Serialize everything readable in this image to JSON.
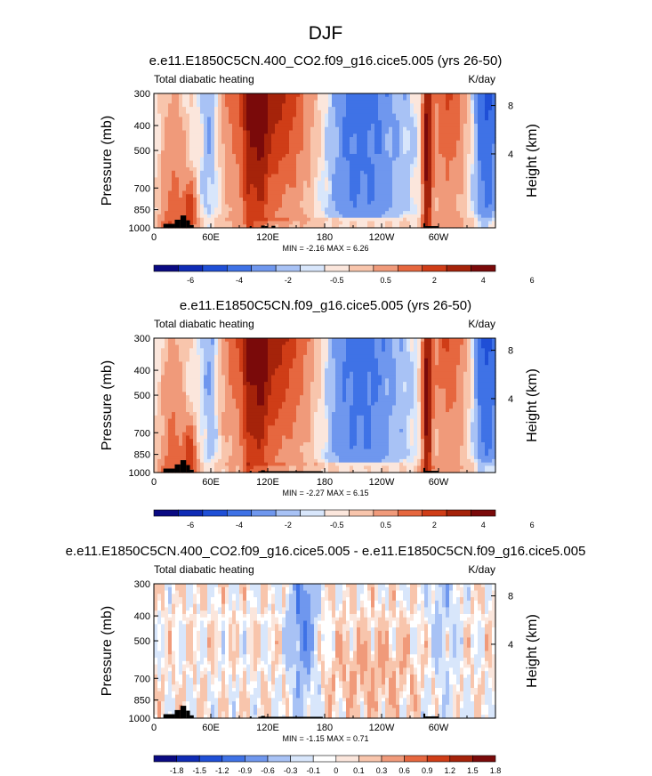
{
  "figure": {
    "suptitle": "DJF",
    "colors": {
      "full_palette": [
        "#0a0a82",
        "#0f2bb5",
        "#1f4fd6",
        "#3f72e6",
        "#6f97ee",
        "#a8c2f5",
        "#d8e6fb",
        "#fbe6dc",
        "#f8c5ac",
        "#f09a7a",
        "#e6673f",
        "#cf3d17",
        "#a5230a",
        "#7a0a0a"
      ],
      "diff_palette": [
        "#0a0a82",
        "#0f2bb5",
        "#1f4fd6",
        "#3f72e6",
        "#6f97ee",
        "#a8c2f5",
        "#d8e6fb",
        "#ffffff",
        "#fbe6dc",
        "#f8c5ac",
        "#f09a7a",
        "#e6673f",
        "#cf3d17",
        "#a5230a",
        "#7a0a0a"
      ],
      "terrain": "#000000"
    }
  },
  "chart_data": [
    {
      "type": "heatmap",
      "title": "e.e11.E1850C5CN.400_CO2.f09_g16.cice5.005 (yrs 26-50)",
      "left_label": "Total diabatic heating",
      "units_label": "K/day",
      "ylabel": "Pressure (mb)",
      "ylabel_right": "Height (km)",
      "x_ticks": [
        "0",
        "60E",
        "120E",
        "180",
        "120W",
        "60W"
      ],
      "x_range": [
        0,
        360
      ],
      "y_ticks": [
        "300",
        "400",
        "500",
        "700",
        "850",
        "1000"
      ],
      "y_range": [
        300,
        1000
      ],
      "y_right_ticks": [
        "8",
        "4"
      ],
      "stats": "MIN =  -2.16  MAX =   6.26",
      "colorbar_labels": [
        "-6",
        "-4",
        "-2",
        "-0.5",
        "0.5",
        "2",
        "4",
        "6"
      ],
      "palette": "full"
    },
    {
      "type": "heatmap",
      "title": "e.e11.E1850C5CN.f09_g16.cice5.005 (yrs 26-50)",
      "left_label": "Total diabatic heating",
      "units_label": "K/day",
      "ylabel": "Pressure (mb)",
      "ylabel_right": "Height (km)",
      "x_ticks": [
        "0",
        "60E",
        "120E",
        "180",
        "120W",
        "60W"
      ],
      "x_range": [
        0,
        360
      ],
      "y_ticks": [
        "300",
        "400",
        "500",
        "700",
        "850",
        "1000"
      ],
      "y_range": [
        300,
        1000
      ],
      "y_right_ticks": [
        "8",
        "4"
      ],
      "stats": "MIN =  -2.27  MAX =   6.15",
      "colorbar_labels": [
        "-6",
        "-4",
        "-2",
        "-0.5",
        "0.5",
        "2",
        "4",
        "6"
      ],
      "palette": "full"
    },
    {
      "type": "heatmap",
      "title": "e.e11.E1850C5CN.400_CO2.f09_g16.cice5.005 - e.e11.E1850C5CN.f09_g16.cice5.005",
      "left_label": "Total diabatic heating",
      "units_label": "K/day",
      "ylabel": "Pressure (mb)",
      "ylabel_right": "Height (km)",
      "x_ticks": [
        "0",
        "60E",
        "120E",
        "180",
        "120W",
        "60W"
      ],
      "x_range": [
        0,
        360
      ],
      "y_ticks": [
        "300",
        "400",
        "500",
        "700",
        "850",
        "1000"
      ],
      "y_range": [
        300,
        1000
      ],
      "y_right_ticks": [
        "8",
        "4"
      ],
      "stats": "MIN =  -1.15  MAX =   0.71",
      "colorbar_labels": [
        "-1.8",
        "-1.5",
        "-1.2",
        "-0.9",
        "-0.6",
        "-0.3",
        "-0.1",
        "0",
        "0.1",
        "0.3",
        "0.6",
        "0.9",
        "1.2",
        "1.5",
        "1.8"
      ],
      "palette": "diff"
    }
  ]
}
